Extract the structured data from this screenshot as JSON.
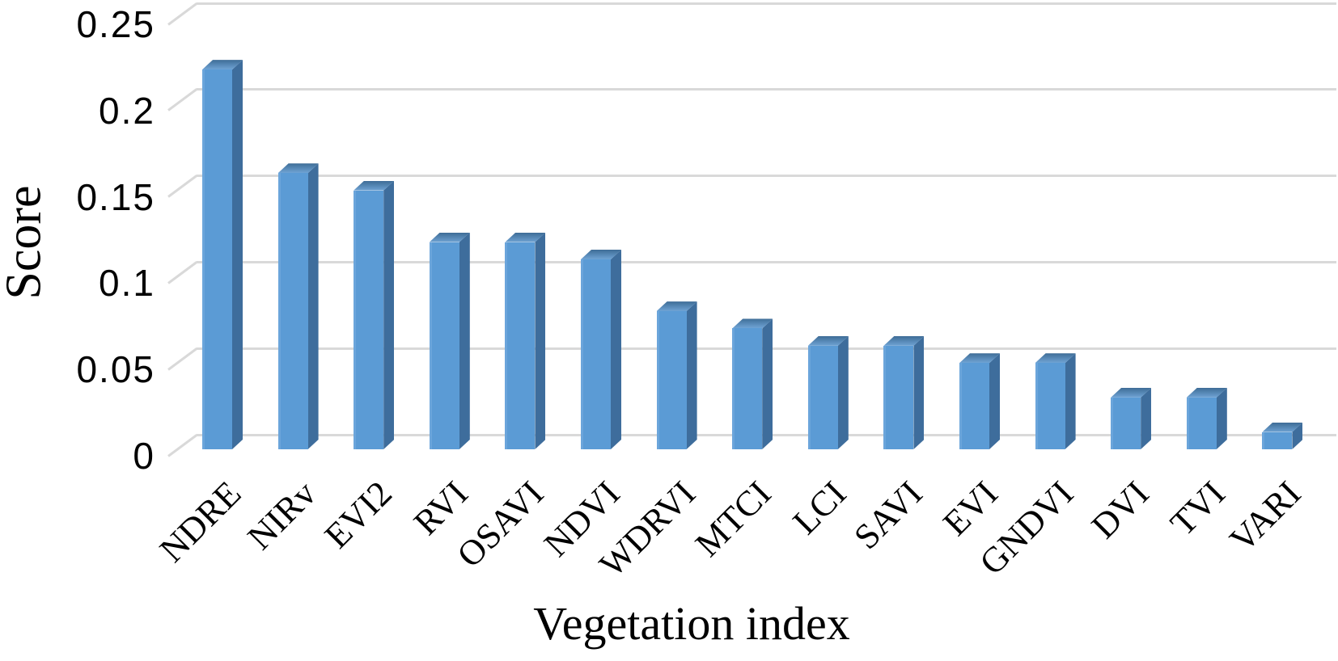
{
  "chart_data": {
    "type": "bar",
    "style": "3d-column",
    "title": "",
    "xlabel": "Vegetation index",
    "ylabel": "Score",
    "categories": [
      "NDRE",
      "NIRv",
      "EVI2",
      "RVI",
      "OSAVI",
      "NDVI",
      "WDRVI",
      "MTCI",
      "LCI",
      "SAVI",
      "EVI",
      "GNDVI",
      "DVI",
      "TVI",
      "VARI"
    ],
    "values": [
      0.22,
      0.16,
      0.15,
      0.12,
      0.12,
      0.11,
      0.08,
      0.07,
      0.06,
      0.06,
      0.05,
      0.05,
      0.03,
      0.03,
      0.01
    ],
    "ylim": [
      0,
      0.25
    ],
    "yticks": [
      {
        "value": 0,
        "label": "0"
      },
      {
        "value": 0.05,
        "label": "0.05"
      },
      {
        "value": 0.1,
        "label": "0.1"
      },
      {
        "value": 0.15,
        "label": "0.15"
      },
      {
        "value": 0.2,
        "label": "0.2"
      },
      {
        "value": 0.25,
        "label": "0.25"
      }
    ],
    "grid": true,
    "legend": false,
    "colors": {
      "bar_front": "#5B9BD5",
      "bar_side": "#3E6D9C",
      "bar_top_back": "#3E6C96",
      "bar_top_front": "#6FA3D4",
      "gridline": "#D9D9D9",
      "text": "#000000",
      "background": "#FFFFFF"
    }
  }
}
